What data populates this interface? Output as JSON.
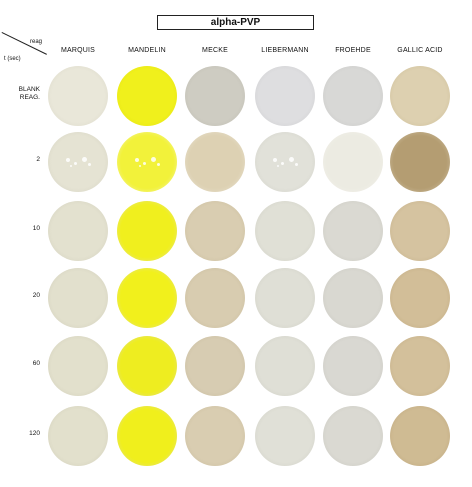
{
  "title": "alpha-PVP",
  "corner": {
    "reag_label": "reag",
    "time_label": "t (sec)"
  },
  "columns": [
    "MARQUIS",
    "MANDELIN",
    "MECKE",
    "LIEBERMANN",
    "FROEHDE",
    "GALLIC ACID"
  ],
  "rows": [
    {
      "label": "BLANK\nREAG.",
      "wells": [
        {
          "color": "#e9e7d9",
          "edge": "#d6d3c3",
          "texture": "none"
        },
        {
          "color": "#f0f01c",
          "edge": "#e1e10f",
          "texture": "none"
        },
        {
          "color": "#ceccc2",
          "edge": "#b9b7ac",
          "texture": "none"
        },
        {
          "color": "#dedee0",
          "edge": "#c9c9cb",
          "texture": "none"
        },
        {
          "color": "#d8d8d6",
          "edge": "#c4c4c2",
          "texture": "none"
        },
        {
          "color": "#ddd0b0",
          "edge": "#c8b991",
          "texture": "none"
        }
      ]
    },
    {
      "label": "2",
      "wells": [
        {
          "color": "#e5e3d3",
          "edge": "#d0cebd",
          "texture": "specks"
        },
        {
          "color": "#f2f23a",
          "edge": "#f6f6cc",
          "texture": "specks"
        },
        {
          "color": "#ddd1b3",
          "edge": "#ede8da",
          "texture": "none"
        },
        {
          "color": "#e1e1d9",
          "edge": "#cdcdc4",
          "texture": "specks"
        },
        {
          "color": "#ecebe2",
          "edge": "#f4f3ec",
          "texture": "none"
        },
        {
          "color": "#b49d72",
          "edge": "#d8ccb3",
          "texture": "none"
        }
      ]
    },
    {
      "label": "10",
      "wells": [
        {
          "color": "#e3e1cf",
          "edge": "#cdcbb8",
          "texture": "none"
        },
        {
          "color": "#f0ef1e",
          "edge": "#e2e1b0",
          "texture": "none"
        },
        {
          "color": "#d9cdb1",
          "edge": "#c6b998",
          "texture": "none"
        },
        {
          "color": "#e0e0d6",
          "edge": "#cbcbc1",
          "texture": "none"
        },
        {
          "color": "#dad9d2",
          "edge": "#c5c4bc",
          "texture": "none"
        },
        {
          "color": "#d5c3a0",
          "edge": "#bfaa82",
          "texture": "none"
        }
      ]
    },
    {
      "label": "20",
      "wells": [
        {
          "color": "#e2e0cd",
          "edge": "#ccc9b6",
          "texture": "none"
        },
        {
          "color": "#f1f01c",
          "edge": "#deddb0",
          "texture": "none"
        },
        {
          "color": "#d8ccb0",
          "edge": "#c4b797",
          "texture": "none"
        },
        {
          "color": "#dfdfd6",
          "edge": "#cacac0",
          "texture": "none"
        },
        {
          "color": "#d9d8d1",
          "edge": "#c4c3bb",
          "texture": "none"
        },
        {
          "color": "#d2be98",
          "edge": "#bca47a",
          "texture": "none"
        }
      ]
    },
    {
      "label": "60",
      "wells": [
        {
          "color": "#e2e0cc",
          "edge": "#ccc9b5",
          "texture": "none"
        },
        {
          "color": "#eeed20",
          "edge": "#dcdbb0",
          "texture": "none"
        },
        {
          "color": "#d7ccb2",
          "edge": "#c3b799",
          "texture": "none"
        },
        {
          "color": "#dfdfd6",
          "edge": "#cacac0",
          "texture": "none"
        },
        {
          "color": "#d9d8d2",
          "edge": "#c4c3bc",
          "texture": "none"
        },
        {
          "color": "#d3c09b",
          "edge": "#bda67d",
          "texture": "none"
        }
      ]
    },
    {
      "label": "120",
      "wells": [
        {
          "color": "#e2e0cc",
          "edge": "#ccc9b5",
          "texture": "none"
        },
        {
          "color": "#f0ef1c",
          "edge": "#dcdbae",
          "texture": "none"
        },
        {
          "color": "#d9cdb1",
          "edge": "#c5b898",
          "texture": "none"
        },
        {
          "color": "#e0e0d7",
          "edge": "#cbcbc1",
          "texture": "none"
        },
        {
          "color": "#dad9d2",
          "edge": "#c5c4bc",
          "texture": "none"
        },
        {
          "color": "#cfbb93",
          "edge": "#b9a076",
          "texture": "none"
        }
      ]
    }
  ]
}
